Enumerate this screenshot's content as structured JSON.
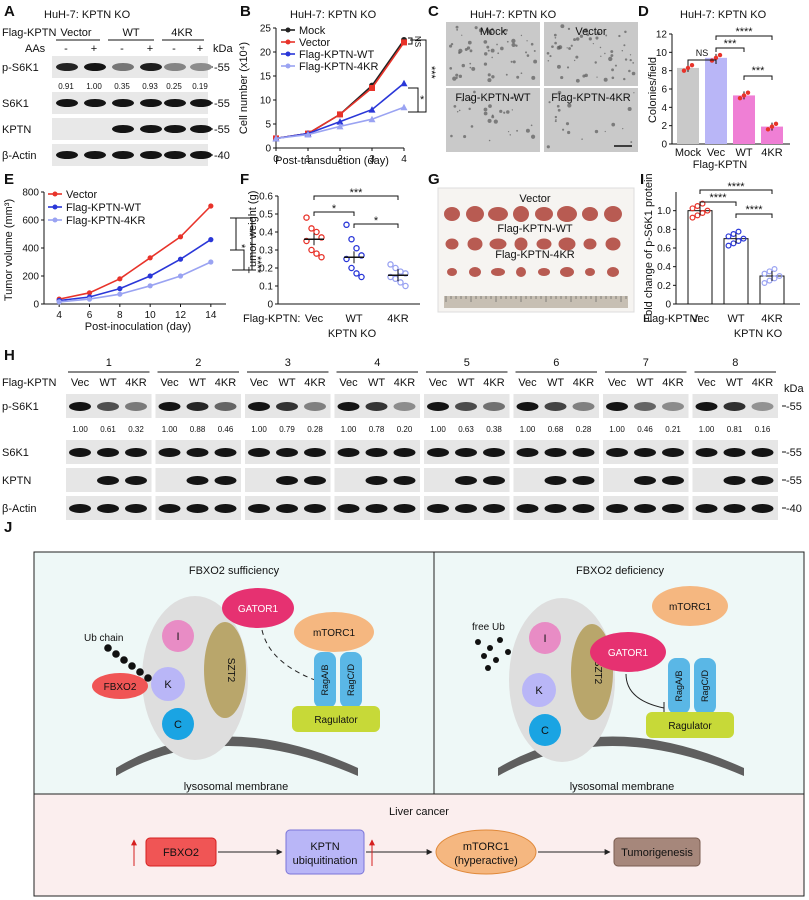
{
  "panel_labels": {
    "a": "A",
    "b": "B",
    "c": "C",
    "d": "D",
    "e": "E",
    "f": "F",
    "g": "G",
    "h": "H",
    "i": "I",
    "j": "J"
  },
  "kda": "kDa",
  "colors": {
    "mock": "#222222",
    "vector": "#e8332a",
    "wt": "#2a37d8",
    "kr": "#9aa3f2",
    "pink": "#ef7fd5",
    "lavender": "#b9b6f7",
    "gray": "#c9c9c9"
  },
  "panelA": {
    "title": "HuH-7: KPTN KO",
    "group_label": "Flag-KPTN",
    "groups": [
      "Vector",
      "WT",
      "4KR"
    ],
    "aas_label": "AAs",
    "aas_signs": [
      "-",
      "+",
      "-",
      "+",
      "-",
      "+"
    ],
    "quant": [
      "0.91",
      "1.00",
      "0.35",
      "0.93",
      "0.25",
      "0.19"
    ],
    "blots": [
      {
        "label": "p-S6K1",
        "marker": "55"
      },
      {
        "label": "S6K1",
        "marker": "55"
      },
      {
        "label": "KPTN",
        "marker": "55"
      },
      {
        "label": "β-Actin",
        "marker": "40"
      }
    ]
  },
  "panelB": {
    "chart_data": {
      "type": "line",
      "title": "HuH-7: KPTN KO",
      "xlabel": "Post-transduction (day)",
      "ylabel": "Cell number (x10⁴)",
      "x": [
        0,
        1,
        2,
        3,
        4
      ],
      "xlim": [
        0,
        4
      ],
      "ylim": [
        0,
        25
      ],
      "xticks": [
        "0",
        "1",
        "2",
        "3",
        "4"
      ],
      "yticks": [
        "0",
        "5",
        "10",
        "15",
        "20",
        "25"
      ],
      "series": [
        {
          "name": "Mock",
          "values": [
            2,
            3,
            7,
            13,
            22.5
          ]
        },
        {
          "name": "Vector",
          "values": [
            2,
            3,
            7,
            12.5,
            22
          ]
        },
        {
          "name": "Flag-KPTN-WT",
          "values": [
            2,
            3,
            5.5,
            8,
            13.5
          ]
        },
        {
          "name": "Flag-KPTN-4KR",
          "values": [
            2,
            2.8,
            4.5,
            6,
            8.5
          ]
        }
      ],
      "annotations": [
        "NS",
        "*",
        "***"
      ]
    }
  },
  "panelC": {
    "title": "HuH-7: KPTN KO",
    "wells": [
      "Mock",
      "Vector",
      "Flag-KPTN-WT",
      "Flag-KPTN-4KR"
    ]
  },
  "panelD": {
    "chart_data": {
      "type": "bar",
      "title": "HuH-7: KPTN KO",
      "ylabel": "Colonies/field",
      "categories": [
        "Mock",
        "Vec",
        "WT",
        "4KR"
      ],
      "group_label": "Flag-KPTN",
      "values": [
        8.3,
        9.4,
        5.3,
        1.9
      ],
      "ylim": [
        0,
        12
      ],
      "yticks": [
        "0",
        "2",
        "4",
        "6",
        "8",
        "10",
        "12"
      ],
      "annotations": [
        "NS",
        "***",
        "****",
        "***"
      ]
    }
  },
  "panelE": {
    "chart_data": {
      "type": "line",
      "xlabel": "Post-inoculation (day)",
      "ylabel": "Tumor volume (mm³)",
      "x": [
        4,
        6,
        8,
        10,
        12,
        14
      ],
      "xlim": [
        3,
        15
      ],
      "ylim": [
        0,
        800
      ],
      "xticks": [
        "4",
        "6",
        "8",
        "10",
        "12",
        "14"
      ],
      "yticks": [
        "0",
        "200",
        "400",
        "600",
        "800"
      ],
      "series": [
        {
          "name": "Vector",
          "values": [
            35,
            80,
            180,
            330,
            480,
            700
          ]
        },
        {
          "name": "Flag-KPTN-WT",
          "values": [
            25,
            50,
            110,
            200,
            320,
            460
          ]
        },
        {
          "name": "Flag-KPTN-4KR",
          "values": [
            15,
            35,
            70,
            130,
            200,
            300
          ]
        }
      ],
      "annotations": [
        "*",
        "**",
        "****"
      ]
    }
  },
  "panelF": {
    "chart_data": {
      "type": "scatter",
      "ylabel": "Tumor weight (g)",
      "categories": [
        "Vec",
        "WT",
        "4KR"
      ],
      "group_label": "Flag-KPTN:",
      "sublabel": "KPTN KO",
      "means": [
        0.36,
        0.26,
        0.16
      ],
      "ylim": [
        0,
        0.6
      ],
      "yticks": [
        "0",
        "0.1",
        "0.2",
        "0.3",
        "0.4",
        "0.5",
        "0.6"
      ],
      "points": [
        [
          0.48,
          0.42,
          0.4,
          0.37,
          0.35,
          0.3,
          0.28,
          0.26
        ],
        [
          0.44,
          0.36,
          0.31,
          0.27,
          0.25,
          0.2,
          0.17,
          0.15
        ],
        [
          0.22,
          0.2,
          0.18,
          0.17,
          0.15,
          0.14,
          0.12,
          0.1
        ]
      ],
      "annotations": [
        "*",
        "***",
        "*"
      ]
    }
  },
  "panelG": {
    "labels": [
      "Vector",
      "Flag-KPTN-WT",
      "Flag-KPTN-4KR"
    ]
  },
  "panelI": {
    "chart_data": {
      "type": "bar",
      "ylabel": "Fold change of p-S6K1 protein",
      "categories": [
        "Vec",
        "WT",
        "4KR"
      ],
      "group_label": "Flag-KPTN:",
      "sublabel": "KPTN KO",
      "values": [
        1.0,
        0.7,
        0.3
      ],
      "ylim": [
        0,
        1.2
      ],
      "yticks": [
        "0",
        "0.2",
        "0.4",
        "0.6",
        "0.8",
        "1.0"
      ],
      "annotations": [
        "****",
        "****",
        "****"
      ]
    }
  },
  "panelH": {
    "group_label": "Flag-KPTN",
    "lanes": [
      "Vec",
      "WT",
      "4KR"
    ],
    "samples": [
      "1",
      "2",
      "3",
      "4",
      "5",
      "6",
      "7",
      "8"
    ],
    "quant": [
      [
        "1.00",
        "0.61",
        "0.32"
      ],
      [
        "1.00",
        "0.88",
        "0.46"
      ],
      [
        "1.00",
        "0.79",
        "0.28"
      ],
      [
        "1.00",
        "0.78",
        "0.20"
      ],
      [
        "1.00",
        "0.63",
        "0.38"
      ],
      [
        "1.00",
        "0.68",
        "0.28"
      ],
      [
        "1.00",
        "0.46",
        "0.21"
      ],
      [
        "1.00",
        "0.81",
        "0.16"
      ]
    ],
    "blots": [
      {
        "label": "p-S6K1",
        "marker": "55"
      },
      {
        "label": "S6K1",
        "marker": "55"
      },
      {
        "label": "KPTN",
        "marker": "55"
      },
      {
        "label": "β-Actin",
        "marker": "40"
      }
    ]
  },
  "panelJ": {
    "left_title": "FBXO2 sufficiency",
    "right_title": "FBXO2 deficiency",
    "gator": "GATOR1",
    "mtorc": "mTORC1",
    "ub_chain": "Ub chain",
    "free_ub": "free Ub",
    "fbxo2": "FBXO2",
    "szt2": "SZT2",
    "i": "I",
    "k": "K",
    "c": "C",
    "ragab": "RagA/B",
    "ragcd": "RagC/D",
    "ragulator": "Ragulator",
    "membrane": "lysosomal membrane",
    "liver_title": "Liver cancer",
    "flow": [
      "FBXO2",
      "KPTN ubiquitination",
      "mTORC1 (hyperactive)",
      "Tumorigenesis"
    ],
    "flow_line1": [
      "FBXO2",
      "KPTN",
      "mTORC1",
      "Tumorigenesis"
    ],
    "flow_line2": [
      "",
      "ubiquitination",
      "(hyperactive)",
      ""
    ]
  }
}
